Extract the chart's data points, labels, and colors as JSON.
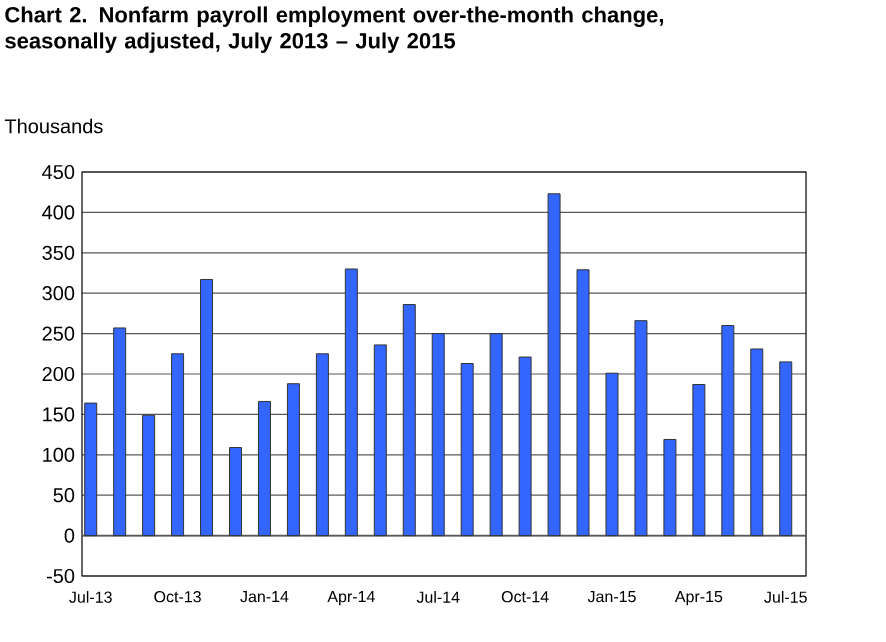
{
  "chart_data": {
    "type": "bar",
    "title": "Chart 2. Nonfarm payroll employment over-the-month change, seasonally adjusted, July 2013 – July 2015",
    "ylabel": "Thousands",
    "categories": [
      "Jul-13",
      null,
      null,
      "Oct-13",
      null,
      null,
      "Jan-14",
      null,
      null,
      "Apr-14",
      null,
      null,
      "Jul-14",
      null,
      null,
      "Oct-14",
      null,
      null,
      "Jan-15",
      null,
      null,
      "Apr-15",
      null,
      null,
      "Jul-15"
    ],
    "values": [
      164,
      257,
      149,
      225,
      317,
      109,
      166,
      188,
      225,
      330,
      236,
      286,
      250,
      213,
      250,
      221,
      423,
      329,
      201,
      266,
      119,
      187,
      260,
      231,
      215
    ],
    "color": "#3366ff",
    "ylim": [
      -50,
      450
    ],
    "yticks": [
      -50,
      0,
      50,
      100,
      150,
      200,
      250,
      300,
      350,
      400,
      450
    ],
    "grid": "y"
  }
}
